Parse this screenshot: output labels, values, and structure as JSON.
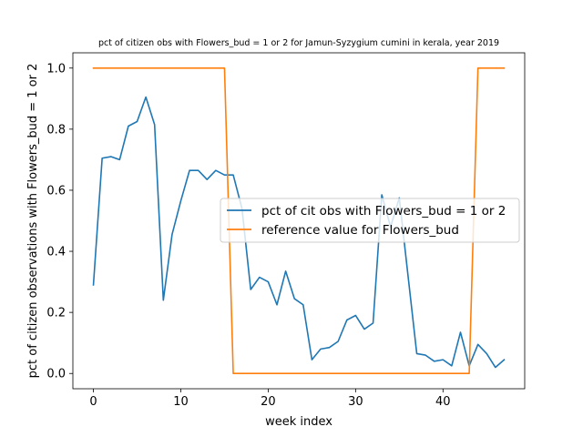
{
  "chart_data": {
    "type": "line",
    "title": "pct of citizen obs with Flowers_bud = 1 or 2 for Jamun-Syzygium cumini in kerala, year 2019",
    "xlabel": "week index",
    "ylabel": "pct of citizen observations with Flowers_bud = 1 or 2",
    "xlim": [
      -2.35,
      49.35
    ],
    "ylim": [
      -0.05,
      1.05
    ],
    "xticks": [
      0,
      10,
      20,
      30,
      40
    ],
    "yticks": [
      0.0,
      0.2,
      0.4,
      0.6,
      0.8,
      1.0
    ],
    "xtick_labels": [
      "0",
      "10",
      "20",
      "30",
      "40"
    ],
    "ytick_labels": [
      "0.0",
      "0.2",
      "0.4",
      "0.6",
      "0.8",
      "1.0"
    ],
    "grid": false,
    "legend_position": "center-right",
    "series": [
      {
        "name": "pct of cit obs with Flowers_bud = 1 or 2",
        "color": "#1f77b4",
        "x": [
          0,
          1,
          2,
          3,
          4,
          5,
          6,
          7,
          8,
          9,
          10,
          11,
          12,
          13,
          14,
          15,
          16,
          17,
          18,
          19,
          20,
          21,
          22,
          23,
          24,
          25,
          26,
          27,
          28,
          29,
          30,
          31,
          32,
          33,
          34,
          35,
          36,
          37,
          38,
          39,
          40,
          41,
          42,
          43,
          44,
          45,
          46,
          47
        ],
        "y": [
          0.29,
          0.705,
          0.71,
          0.7,
          0.81,
          0.825,
          0.905,
          0.815,
          0.24,
          0.455,
          0.565,
          0.665,
          0.665,
          0.635,
          0.665,
          0.65,
          0.65,
          0.54,
          0.275,
          0.315,
          0.3,
          0.225,
          0.335,
          0.245,
          0.225,
          0.045,
          0.08,
          0.085,
          0.105,
          0.175,
          0.19,
          0.145,
          0.165,
          0.585,
          0.48,
          0.575,
          0.32,
          0.065,
          0.06,
          0.04,
          0.045,
          0.025,
          0.135,
          0.025,
          0.095,
          0.065,
          0.02,
          0.045
        ]
      },
      {
        "name": "reference value for Flowers_bud",
        "color": "#ff7f0e",
        "x": [
          0,
          1,
          2,
          3,
          4,
          5,
          6,
          7,
          8,
          9,
          10,
          11,
          12,
          13,
          14,
          15,
          16,
          17,
          18,
          19,
          20,
          21,
          22,
          23,
          24,
          25,
          26,
          27,
          28,
          29,
          30,
          31,
          32,
          33,
          34,
          35,
          36,
          37,
          38,
          39,
          40,
          41,
          42,
          43,
          44,
          45,
          46,
          47
        ],
        "y": [
          1,
          1,
          1,
          1,
          1,
          1,
          1,
          1,
          1,
          1,
          1,
          1,
          1,
          1,
          1,
          1,
          0,
          0,
          0,
          0,
          0,
          0,
          0,
          0,
          0,
          0,
          0,
          0,
          0,
          0,
          0,
          0,
          0,
          0,
          0,
          0,
          0,
          0,
          0,
          0,
          0,
          0,
          0,
          0,
          1,
          1,
          1,
          1
        ]
      }
    ]
  }
}
